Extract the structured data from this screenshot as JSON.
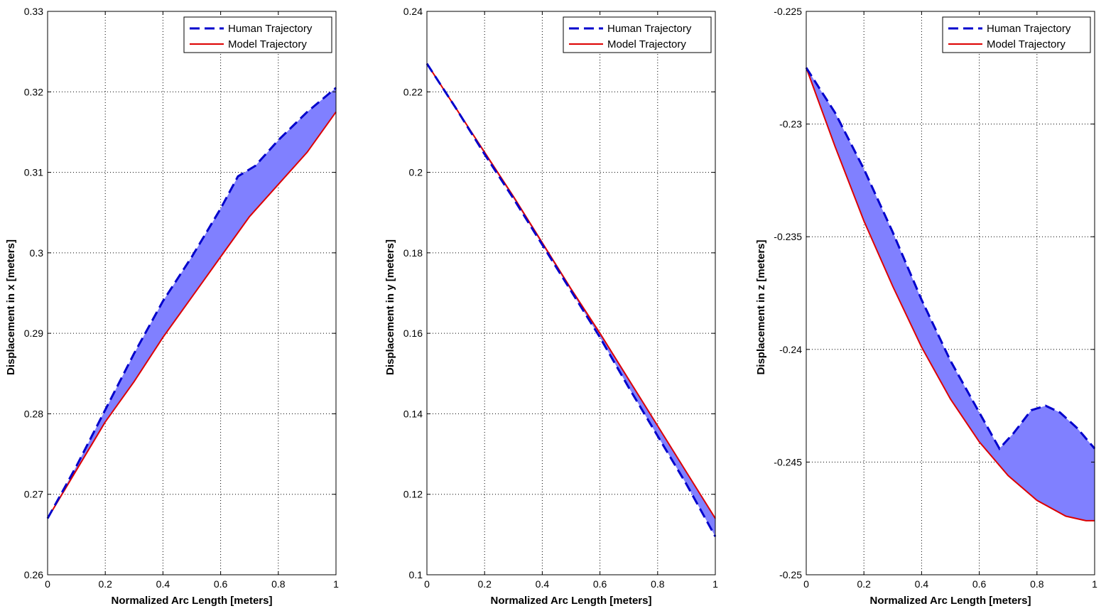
{
  "chart_data": [
    {
      "type": "line",
      "xlabel": "Normalized Arc Length [meters]",
      "ylabel": "Displacement in x [meters]",
      "xlim": [
        0,
        1
      ],
      "ylim": [
        0.26,
        0.33
      ],
      "xticks": [
        "0",
        "0.2",
        "0.4",
        "0.6",
        "0.8",
        "1"
      ],
      "yticks": [
        "0.26",
        "0.27",
        "0.28",
        "0.29",
        "0.3",
        "0.31",
        "0.32",
        "0.33"
      ],
      "grid": true,
      "legend_position": "top-right",
      "fill_between": {
        "color": "#8080ff"
      },
      "series": [
        {
          "name": "Human Trajectory",
          "color": "#0000cc",
          "style": "dashed",
          "x": [
            0,
            0.1,
            0.2,
            0.3,
            0.4,
            0.5,
            0.6,
            0.66,
            0.72,
            0.8,
            0.9,
            1.0
          ],
          "y": [
            0.267,
            0.2735,
            0.2805,
            0.2875,
            0.294,
            0.2995,
            0.3055,
            0.3095,
            0.3108,
            0.314,
            0.3175,
            0.3205
          ]
        },
        {
          "name": "Model Trajectory",
          "color": "#dd0000",
          "style": "solid",
          "x": [
            0,
            0.1,
            0.2,
            0.3,
            0.4,
            0.5,
            0.6,
            0.7,
            0.8,
            0.9,
            1.0
          ],
          "y": [
            0.267,
            0.273,
            0.279,
            0.284,
            0.2895,
            0.2945,
            0.2995,
            0.3045,
            0.3085,
            0.3125,
            0.3175
          ]
        }
      ]
    },
    {
      "type": "line",
      "xlabel": "Normalized Arc Length [meters]",
      "ylabel": "Displacement in y [meters]",
      "xlim": [
        0,
        1
      ],
      "ylim": [
        0.1,
        0.24
      ],
      "xticks": [
        "0",
        "0.2",
        "0.4",
        "0.6",
        "0.8",
        "1"
      ],
      "yticks": [
        "0.1",
        "0.12",
        "0.14",
        "0.16",
        "0.18",
        "0.2",
        "0.22",
        "0.24"
      ],
      "grid": true,
      "legend_position": "top-right",
      "fill_between": {
        "color": "#8080ff"
      },
      "series": [
        {
          "name": "Human Trajectory",
          "color": "#0000cc",
          "style": "dashed",
          "x": [
            0,
            0.1,
            0.2,
            0.3,
            0.4,
            0.5,
            0.6,
            0.7,
            0.8,
            0.9,
            1.0
          ],
          "y": [
            0.227,
            0.216,
            0.2045,
            0.1935,
            0.182,
            0.1705,
            0.159,
            0.1465,
            0.1345,
            0.1225,
            0.1095
          ]
        },
        {
          "name": "Model Trajectory",
          "color": "#dd0000",
          "style": "solid",
          "x": [
            0,
            0.1,
            0.2,
            0.3,
            0.4,
            0.5,
            0.6,
            0.7,
            0.8,
            0.9,
            1.0
          ],
          "y": [
            0.227,
            0.216,
            0.205,
            0.194,
            0.1825,
            0.171,
            0.16,
            0.1485,
            0.137,
            0.1255,
            0.114
          ]
        }
      ]
    },
    {
      "type": "line",
      "xlabel": "Normalized Arc Length [meters]",
      "ylabel": "Displacement in z [meters]",
      "xlim": [
        0,
        1
      ],
      "ylim": [
        -0.25,
        -0.225
      ],
      "xticks": [
        "0",
        "0.2",
        "0.4",
        "0.6",
        "0.8",
        "1"
      ],
      "yticks": [
        "-0.25",
        "-0.245",
        "-0.24",
        "-0.235",
        "-0.23",
        "-0.225"
      ],
      "grid": true,
      "legend_position": "top-right",
      "fill_between": {
        "color": "#8080ff"
      },
      "series": [
        {
          "name": "Human Trajectory",
          "color": "#0000cc",
          "style": "dashed",
          "x": [
            0,
            0.1,
            0.2,
            0.3,
            0.4,
            0.5,
            0.6,
            0.67,
            0.72,
            0.78,
            0.83,
            0.88,
            0.94,
            1.0
          ],
          "y": [
            -0.2275,
            -0.2295,
            -0.232,
            -0.2348,
            -0.2378,
            -0.2405,
            -0.2428,
            -0.2444,
            -0.2437,
            -0.2427,
            -0.2425,
            -0.2428,
            -0.2435,
            -0.2444
          ]
        },
        {
          "name": "Model Trajectory",
          "color": "#dd0000",
          "style": "solid",
          "x": [
            0,
            0.1,
            0.2,
            0.3,
            0.4,
            0.5,
            0.6,
            0.7,
            0.8,
            0.9,
            0.97,
            1.0
          ],
          "y": [
            -0.2275,
            -0.231,
            -0.2343,
            -0.2372,
            -0.2399,
            -0.2422,
            -0.2441,
            -0.2456,
            -0.2467,
            -0.2474,
            -0.2476,
            -0.2476
          ]
        }
      ]
    }
  ]
}
